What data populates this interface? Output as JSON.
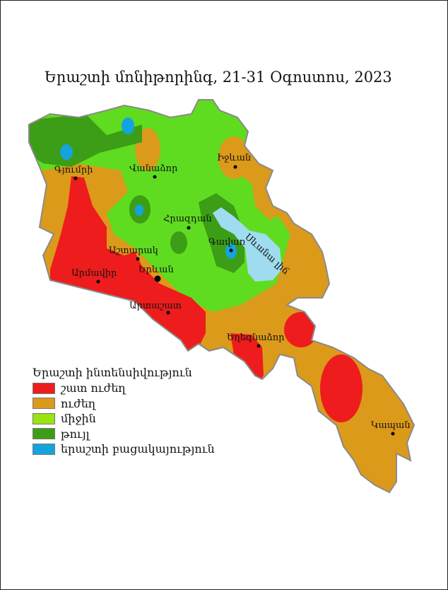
{
  "title": "Երաշտի մոնիթորինգ, 21-31 Օգոստոս, 2023",
  "legend": {
    "title": "Երաշտի ինտենսիվություն",
    "items": [
      {
        "label": "շատ ուժեղ",
        "color": "#ee1c1c"
      },
      {
        "label": "ուժեղ",
        "color": "#db9a1a"
      },
      {
        "label": "միջին",
        "color": "#99e314"
      },
      {
        "label": "թույլ",
        "color": "#3b9e16"
      },
      {
        "label": "երաշտի բացակայություն",
        "color": "#15a3dd"
      }
    ]
  },
  "lake": {
    "label": "Սևանա լիճ",
    "color": "#9fdcf0"
  },
  "cities": [
    {
      "name": "Գյումրի"
    },
    {
      "name": "Վանաձոր"
    },
    {
      "name": "Իջևան"
    },
    {
      "name": "Հրազդան"
    },
    {
      "name": "Գավառ"
    },
    {
      "name": "Աշտարակ"
    },
    {
      "name": "Արմավիր"
    },
    {
      "name": "Երևան",
      "capital": true
    },
    {
      "name": "Արտաշատ"
    },
    {
      "name": "Եղեգնաձոր"
    },
    {
      "name": "Կապան"
    }
  ]
}
